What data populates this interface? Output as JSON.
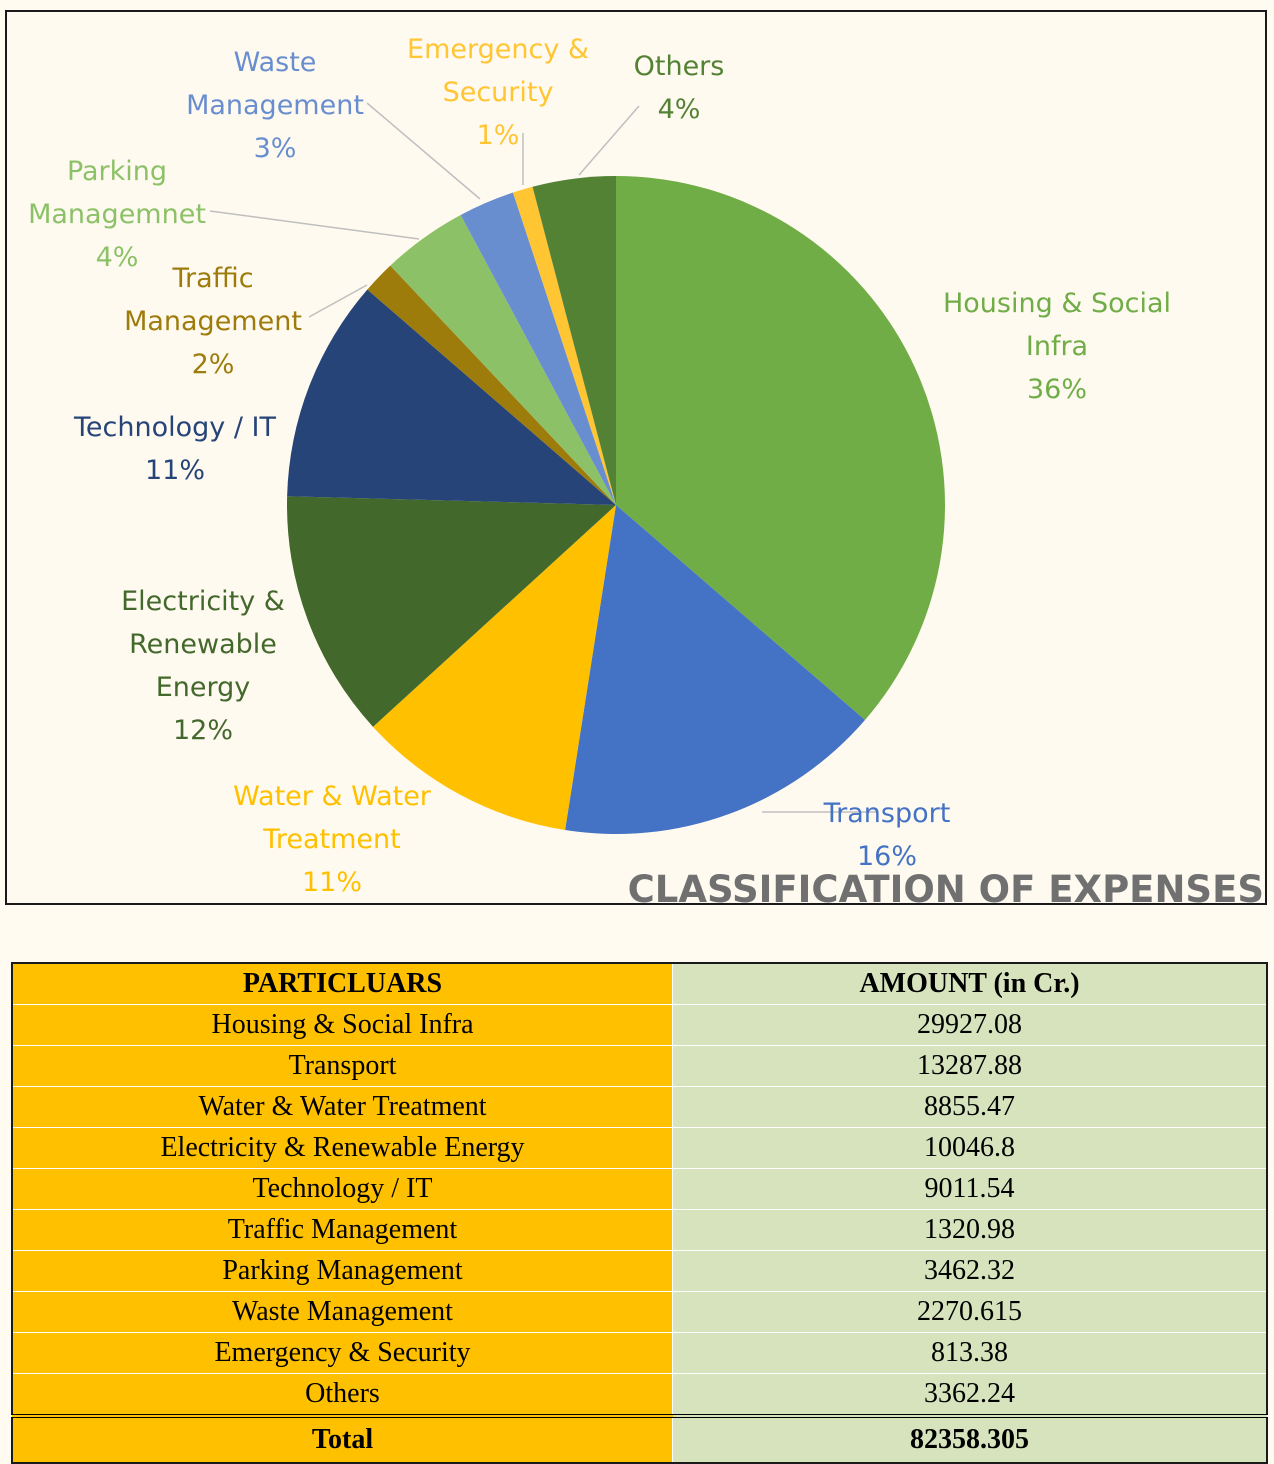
{
  "chart_data": {
    "type": "pie",
    "title": "CLASSIFICATION OF EXPENSES",
    "slices": [
      {
        "name": "Housing & Social Infra",
        "label_lines": [
          "Housing & Social",
          "Infra"
        ],
        "percent_label": "36%",
        "value": 29927.08,
        "color": "#70ad47",
        "label_color": "#70ad47"
      },
      {
        "name": "Transport",
        "label_lines": [
          "Transport"
        ],
        "percent_label": "16%",
        "value": 13287.88,
        "color": "#4472c4",
        "label_color": "#4472c4"
      },
      {
        "name": "Water & Water Treatment",
        "label_lines": [
          "Water & Water",
          "Treatment"
        ],
        "percent_label": "11%",
        "value": 8855.47,
        "color": "#ffc000",
        "label_color": "#ffc000"
      },
      {
        "name": "Electricity & Renewable Energy",
        "label_lines": [
          "Electricity &",
          "Renewable",
          "Energy"
        ],
        "percent_label": "12%",
        "value": 10046.8,
        "color": "#43682b",
        "label_color": "#43682b"
      },
      {
        "name": "Technology / IT",
        "label_lines": [
          "Technology / IT"
        ],
        "percent_label": "11%",
        "value": 9011.54,
        "color": "#264478",
        "label_color": "#264478"
      },
      {
        "name": "Traffic Management",
        "label_lines": [
          "Traffic",
          "Management"
        ],
        "percent_label": "2%",
        "value": 1320.98,
        "color": "#9e7c0c",
        "label_color": "#9e7c0c"
      },
      {
        "name": "Parking Managemnet",
        "label_lines": [
          "Parking",
          "Managemnet"
        ],
        "percent_label": "4%",
        "value": 3462.32,
        "color": "#8cc168",
        "label_color": "#8cc168"
      },
      {
        "name": "Waste Management",
        "label_lines": [
          "Waste",
          "Management"
        ],
        "percent_label": "3%",
        "value": 2270.615,
        "color": "#698ed0",
        "label_color": "#698ed0"
      },
      {
        "name": "Emergency & Security",
        "label_lines": [
          "Emergency &",
          "Security"
        ],
        "percent_label": "1%",
        "value": 813.38,
        "color": "#ffc533",
        "label_color": "#ffc533"
      },
      {
        "name": "Others",
        "label_lines": [
          "Others"
        ],
        "percent_label": "4%",
        "value": 3362.24,
        "color": "#548235",
        "label_color": "#548235"
      }
    ]
  },
  "table": {
    "headers": [
      "PARTICLUARS",
      "AMOUNT (in Cr.)"
    ],
    "rows": [
      [
        "Housing & Social Infra",
        "29927.08"
      ],
      [
        "Transport",
        "13287.88"
      ],
      [
        "Water & Water Treatment",
        "8855.47"
      ],
      [
        "Electricity & Renewable Energy",
        "10046.8"
      ],
      [
        "Technology / IT",
        "9011.54"
      ],
      [
        "Traffic Management",
        "1320.98"
      ],
      [
        "Parking Management",
        "3462.32"
      ],
      [
        "Waste Management",
        "2270.615"
      ],
      [
        "Emergency & Security",
        "813.38"
      ],
      [
        "Others",
        "3362.24"
      ]
    ],
    "total": [
      "Total",
      "82358.305"
    ]
  }
}
